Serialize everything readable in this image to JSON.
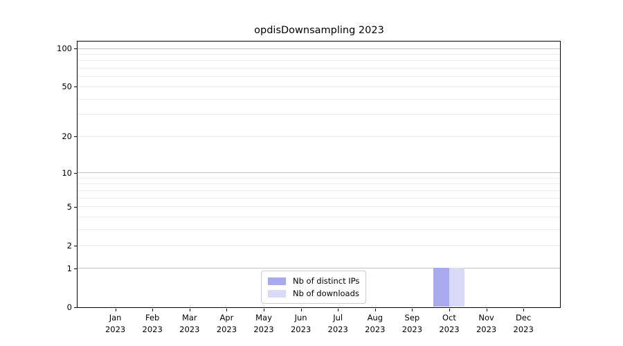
{
  "chart_data": {
    "type": "bar",
    "title": "opdisDownsampling 2023",
    "x_axis": {
      "categories": [
        "Jan",
        "Feb",
        "Mar",
        "Apr",
        "May",
        "Jun",
        "Jul",
        "Aug",
        "Sep",
        "Oct",
        "Nov",
        "Dec"
      ],
      "year": "2023"
    },
    "y_axis": {
      "scale": "log1p",
      "ticks": [
        0,
        1,
        2,
        5,
        10,
        20,
        50,
        100
      ],
      "range": [
        0,
        110
      ],
      "grid_major": [
        1,
        10,
        100
      ],
      "grid_minor": [
        2,
        3,
        4,
        5,
        6,
        7,
        8,
        9,
        20,
        30,
        40,
        50,
        60,
        70,
        80,
        90
      ]
    },
    "series": [
      {
        "name": "Nb of distinct IPs",
        "color": "#a9a9f0",
        "values": [
          0,
          0,
          0,
          0,
          0,
          0,
          0,
          0,
          0,
          1,
          0,
          0
        ]
      },
      {
        "name": "Nb of downloads",
        "color": "#dadaf8",
        "values": [
          0,
          0,
          0,
          0,
          0,
          0,
          0,
          0,
          0,
          1,
          0,
          0
        ]
      }
    ],
    "legend": {
      "position": "lower center",
      "entries": [
        "Nb of distinct IPs",
        "Nb of downloads"
      ]
    }
  },
  "colors": {
    "grid_major": "#c2c2c2",
    "grid_minor": "#ebebeb",
    "spine": "#000000",
    "text": "#000000",
    "legend_border": "#cccccc",
    "background": "#ffffff"
  }
}
